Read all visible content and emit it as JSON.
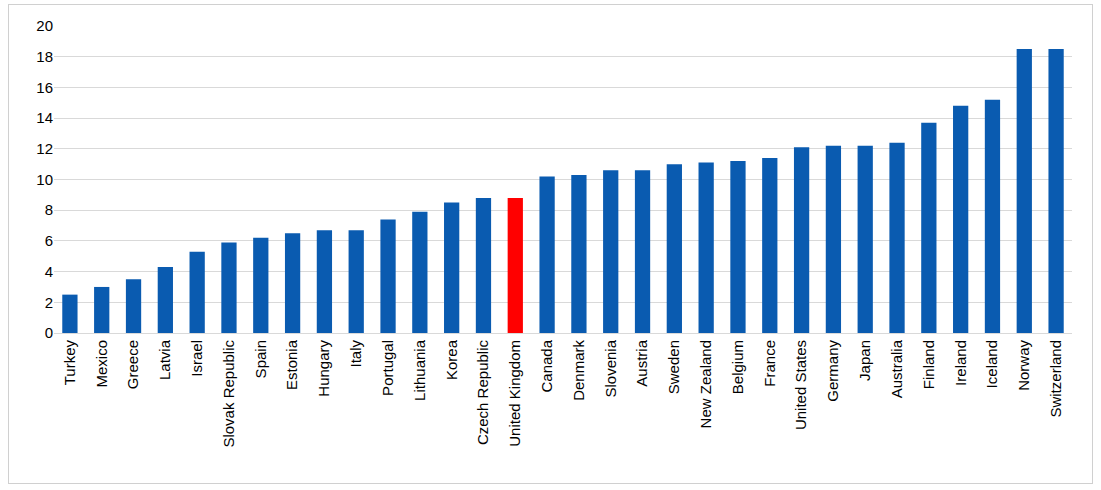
{
  "chart_data": {
    "type": "bar",
    "categories": [
      "Turkey",
      "Mexico",
      "Greece",
      "Latvia",
      "Israel",
      "Slovak Republic",
      "Spain",
      "Estonia",
      "Hungary",
      "Italy",
      "Portugal",
      "Lithuania",
      "Korea",
      "Czech Republic",
      "United Kingdom",
      "Canada",
      "Denmark",
      "Slovenia",
      "Austria",
      "Sweden",
      "New Zealand",
      "Belgium",
      "France",
      "United States",
      "Germany",
      "Japan",
      "Australia",
      "Finland",
      "Ireland",
      "Iceland",
      "Norway",
      "Switzerland"
    ],
    "values": [
      2.5,
      3.0,
      3.5,
      4.3,
      5.3,
      5.9,
      6.2,
      6.5,
      6.7,
      6.7,
      7.4,
      7.9,
      8.5,
      8.8,
      8.8,
      10.2,
      10.3,
      10.6,
      10.6,
      11.0,
      11.1,
      11.2,
      11.4,
      12.1,
      12.2,
      12.2,
      12.4,
      13.7,
      14.8,
      15.2,
      18.5,
      18.5
    ],
    "colors": [
      "#0a5bb0",
      "#0a5bb0",
      "#0a5bb0",
      "#0a5bb0",
      "#0a5bb0",
      "#0a5bb0",
      "#0a5bb0",
      "#0a5bb0",
      "#0a5bb0",
      "#0a5bb0",
      "#0a5bb0",
      "#0a5bb0",
      "#0a5bb0",
      "#0a5bb0",
      "#ff0000",
      "#0a5bb0",
      "#0a5bb0",
      "#0a5bb0",
      "#0a5bb0",
      "#0a5bb0",
      "#0a5bb0",
      "#0a5bb0",
      "#0a5bb0",
      "#0a5bb0",
      "#0a5bb0",
      "#0a5bb0",
      "#0a5bb0",
      "#0a5bb0",
      "#0a5bb0",
      "#0a5bb0",
      "#0a5bb0",
      "#0a5bb0"
    ],
    "ylim": [
      0,
      20
    ],
    "yticks": [
      0,
      2,
      4,
      6,
      8,
      10,
      12,
      14,
      16,
      18,
      20
    ],
    "grid": true
  }
}
